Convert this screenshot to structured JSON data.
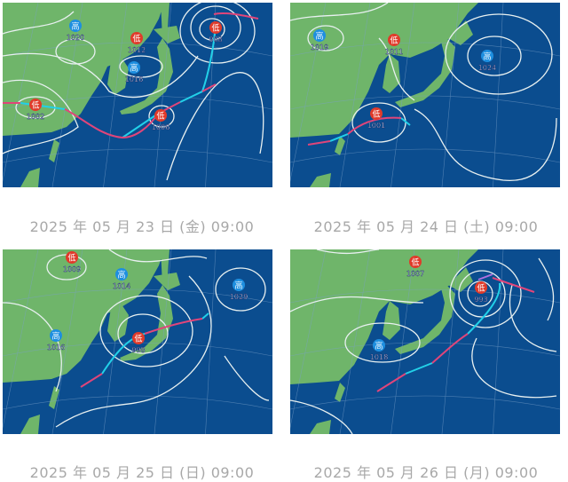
{
  "colors": {
    "sea": "#0b4d8f",
    "land": "#6fb56a",
    "isobar": "#e8f0f0",
    "warm_front": "#e0457a",
    "cold_front": "#22d0e8",
    "occluded_front": "#b070e0",
    "high": "#1e8fe0",
    "low": "#e03a2a",
    "caption": "#a8a8a8"
  },
  "maps": [
    {
      "caption": "2025 年 05 月 23 日 (金) 09:00",
      "systems": [
        {
          "type": "高",
          "value": "1020"
        },
        {
          "type": "低",
          "value": "1012"
        },
        {
          "type": "高",
          "value": "1016"
        },
        {
          "type": "低",
          "value": "988"
        },
        {
          "type": "低",
          "value": "1002"
        },
        {
          "type": "低",
          "value": "1006"
        }
      ]
    },
    {
      "caption": "2025 年 05 月 24 日 (土) 09:00",
      "systems": [
        {
          "type": "高",
          "value": "1019"
        },
        {
          "type": "低",
          "value": "1011"
        },
        {
          "type": "高",
          "value": "1024"
        },
        {
          "type": "低",
          "value": "1001"
        }
      ]
    },
    {
      "caption": "2025 年 05 月 25 日 (日) 09:00",
      "systems": [
        {
          "type": "低",
          "value": "1009"
        },
        {
          "type": "高",
          "value": "1014"
        },
        {
          "type": "高",
          "value": "1029"
        },
        {
          "type": "高",
          "value": "1016"
        },
        {
          "type": "低",
          "value": "998"
        }
      ]
    },
    {
      "caption": "2025 年 05 月 26 日 (月) 09:00",
      "systems": [
        {
          "type": "低",
          "value": "1007"
        },
        {
          "type": "低",
          "value": "993"
        },
        {
          "type": "高",
          "value": "1018"
        }
      ]
    }
  ]
}
